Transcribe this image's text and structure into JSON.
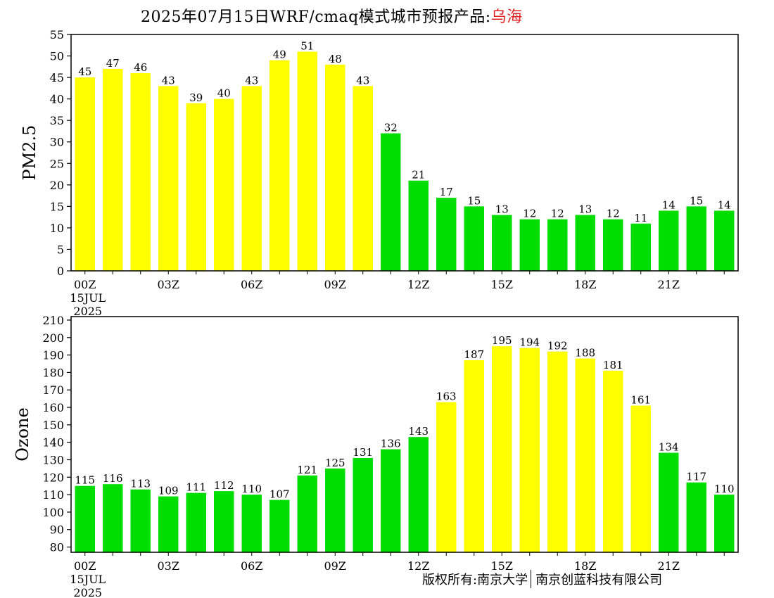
{
  "title": {
    "prefix": "2025年07月15日WRF/cmaq模式城市预报产品:",
    "city": "乌海"
  },
  "colors": {
    "yellow": "#ffff00",
    "green": "#00dd00",
    "city_title": "#e02020",
    "axis": "#000000"
  },
  "chart_data": [
    {
      "type": "bar",
      "ylabel": "PM2.5",
      "xlabel": "",
      "ylim": [
        0,
        55
      ],
      "yticks": [
        "0",
        "5",
        "10",
        "15",
        "20",
        "25",
        "30",
        "35",
        "40",
        "45",
        "50",
        "55"
      ],
      "xtick_labels": [
        {
          "hour": 0,
          "lines": [
            "00Z",
            "15JUL",
            "2025"
          ]
        },
        {
          "hour": 3,
          "lines": [
            "03Z"
          ]
        },
        {
          "hour": 6,
          "lines": [
            "06Z"
          ]
        },
        {
          "hour": 9,
          "lines": [
            "09Z"
          ]
        },
        {
          "hour": 12,
          "lines": [
            "12Z"
          ]
        },
        {
          "hour": 15,
          "lines": [
            "15Z"
          ]
        },
        {
          "hour": 18,
          "lines": [
            "18Z"
          ]
        },
        {
          "hour": 21,
          "lines": [
            "21Z"
          ]
        }
      ],
      "values": [
        45,
        47,
        46,
        43,
        39,
        40,
        43,
        49,
        51,
        48,
        43,
        32,
        21,
        17,
        15,
        13,
        12,
        12,
        13,
        12,
        11,
        14,
        15,
        14
      ],
      "colors": [
        "yellow",
        "yellow",
        "yellow",
        "yellow",
        "yellow",
        "yellow",
        "yellow",
        "yellow",
        "yellow",
        "yellow",
        "yellow",
        "green",
        "green",
        "green",
        "green",
        "green",
        "green",
        "green",
        "green",
        "green",
        "green",
        "green",
        "green",
        "green"
      ]
    },
    {
      "type": "bar",
      "ylabel": "Ozone",
      "xlabel": "",
      "ylim": [
        77,
        212
      ],
      "yticks": [
        "80",
        "90",
        "100",
        "110",
        "120",
        "130",
        "140",
        "150",
        "160",
        "170",
        "180",
        "190",
        "200",
        "210"
      ],
      "xtick_labels": [
        {
          "hour": 0,
          "lines": [
            "00Z",
            "15JUL",
            "2025"
          ]
        },
        {
          "hour": 3,
          "lines": [
            "03Z"
          ]
        },
        {
          "hour": 6,
          "lines": [
            "06Z"
          ]
        },
        {
          "hour": 9,
          "lines": [
            "09Z"
          ]
        },
        {
          "hour": 12,
          "lines": [
            "12Z"
          ]
        },
        {
          "hour": 15,
          "lines": [
            "15Z"
          ]
        },
        {
          "hour": 18,
          "lines": [
            "18Z"
          ]
        },
        {
          "hour": 21,
          "lines": [
            "21Z"
          ]
        }
      ],
      "values": [
        115,
        116,
        113,
        109,
        111,
        112,
        110,
        107,
        121,
        125,
        131,
        136,
        143,
        163,
        187,
        195,
        194,
        192,
        188,
        181,
        161,
        134,
        117,
        110
      ],
      "colors": [
        "green",
        "green",
        "green",
        "green",
        "green",
        "green",
        "green",
        "green",
        "green",
        "green",
        "green",
        "green",
        "green",
        "yellow",
        "yellow",
        "yellow",
        "yellow",
        "yellow",
        "yellow",
        "yellow",
        "yellow",
        "green",
        "green",
        "green"
      ]
    }
  ],
  "copyright": {
    "left": "版权所有:南京大学",
    "right": "南京创蓝科技有限公司"
  }
}
